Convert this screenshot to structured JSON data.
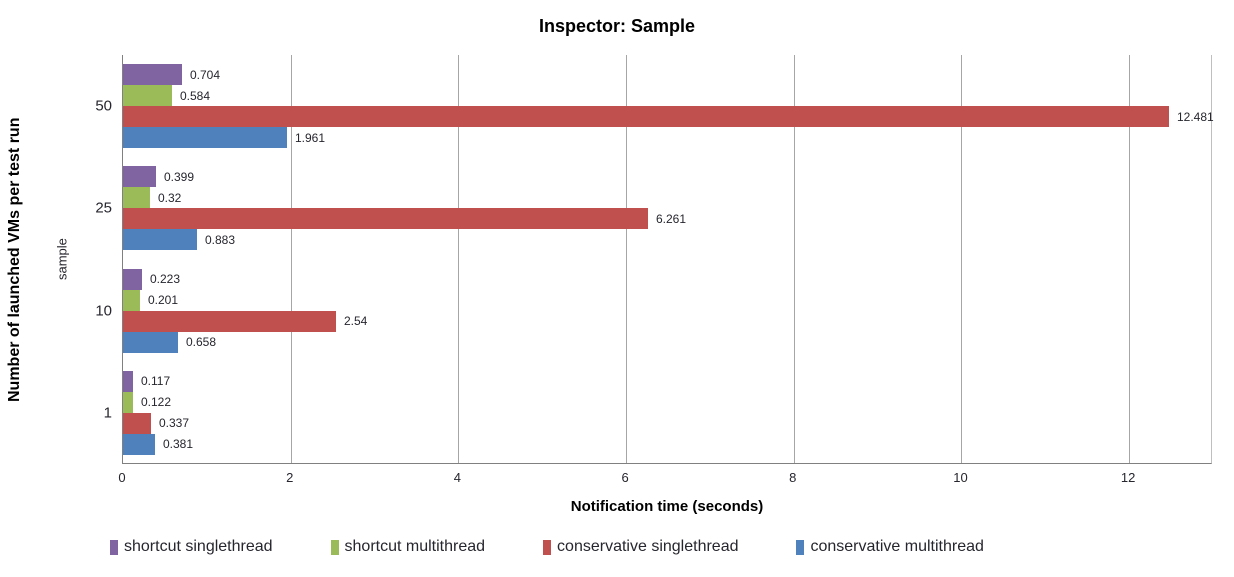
{
  "chart_data": {
    "type": "bar",
    "orientation": "horizontal",
    "title": "Inspector: Sample",
    "xlabel": "Notification time (seconds)",
    "ylabel": "Number of launched VMs per test run",
    "ylabel_secondary": "sample",
    "categories": [
      "50",
      "25",
      "10",
      "1"
    ],
    "series": [
      {
        "name": "shortcut singlethread",
        "color": "#8064A2",
        "values": [
          0.704,
          0.399,
          0.223,
          0.117
        ],
        "labels": [
          "0.704",
          "0.399",
          "0.223",
          "0.117"
        ]
      },
      {
        "name": "shortcut multithread",
        "color": "#9BBB59",
        "values": [
          0.584,
          0.32,
          0.201,
          0.122
        ],
        "labels": [
          "0.584",
          "0.32",
          "0.201",
          "0.122"
        ]
      },
      {
        "name": "conservative singlethread",
        "color": "#C0504D",
        "values": [
          12.481,
          6.261,
          2.54,
          0.337
        ],
        "labels": [
          "12.481",
          "6.261",
          "2.54",
          "0.337"
        ]
      },
      {
        "name": "conservative multithread",
        "color": "#4F81BD",
        "values": [
          1.961,
          0.883,
          0.658,
          0.381
        ],
        "labels": [
          "1.961",
          "0.883",
          "0.658",
          "0.381"
        ]
      }
    ],
    "xlim": [
      0,
      13
    ],
    "xticks": [
      0,
      2,
      4,
      6,
      8,
      10,
      12
    ],
    "grid": "vertical",
    "legend_position": "bottom",
    "colors": {
      "gridline": "#A6A6A6",
      "axis": "#808080",
      "text": "#26262E",
      "title": "#000000"
    }
  }
}
